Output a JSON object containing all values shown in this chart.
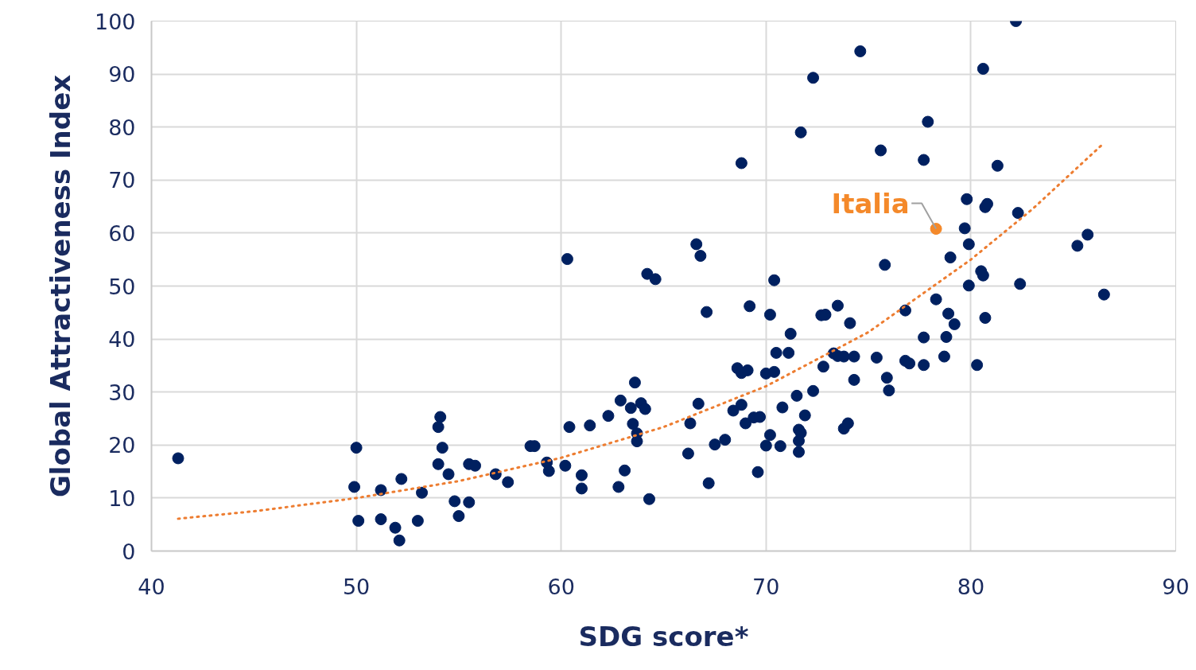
{
  "chart_data": {
    "type": "scatter",
    "xlabel": "SDG score*",
    "ylabel": "Global Attractiveness Index",
    "xlim": [
      40,
      90
    ],
    "xticks": [
      40,
      50,
      60,
      70,
      80,
      90
    ],
    "ylim": [
      0,
      100
    ],
    "yticks": [
      0,
      10,
      20,
      30,
      40,
      50,
      60,
      70,
      80,
      90,
      100
    ],
    "grid": true,
    "marker": "circle",
    "series": [
      {
        "color": "#002060",
        "x": [
          41.3,
          50.0,
          49.9,
          50.1,
          51.2,
          51.2,
          51.9,
          52.1,
          52.2,
          53.0,
          53.2,
          54.1,
          54.0,
          54.2,
          54.0,
          54.5,
          54.8,
          55.0,
          55.5,
          55.8,
          55.5,
          56.8,
          57.4,
          58.5,
          58.7,
          59.3,
          59.4,
          60.2,
          60.3,
          60.4,
          61.0,
          61.0,
          61.4,
          62.3,
          62.8,
          62.9,
          63.1,
          63.6,
          63.4,
          63.5,
          63.7,
          63.7,
          63.9,
          64.1,
          64.3,
          64.2,
          64.6,
          66.2,
          66.3,
          66.6,
          66.7,
          66.8,
          67.1,
          67.2,
          67.5,
          68.0,
          68.4,
          68.6,
          68.8,
          68.8,
          68.8,
          69.0,
          69.1,
          69.2,
          69.4,
          69.7,
          69.6,
          70.0,
          70.0,
          70.2,
          70.2,
          70.4,
          70.4,
          70.5,
          70.7,
          70.8,
          71.1,
          71.2,
          71.5,
          71.6,
          71.6,
          71.6,
          71.7,
          71.9,
          71.7,
          72.3,
          72.3,
          72.8,
          72.7,
          72.9,
          73.3,
          73.5,
          73.5,
          73.8,
          73.8,
          74.0,
          74.1,
          74.3,
          74.3,
          74.6,
          75.4,
          75.6,
          75.8,
          75.9,
          76.0,
          76.8,
          76.8,
          77.0,
          77.7,
          77.7,
          77.7,
          77.9,
          78.3,
          78.7,
          78.9,
          78.8,
          79.0,
          79.2,
          79.7,
          79.8,
          79.9,
          79.9,
          80.3,
          80.5,
          80.6,
          80.6,
          80.7,
          80.7,
          80.8,
          81.3,
          82.2,
          82.3,
          82.4,
          85.2,
          85.7,
          86.5
        ],
        "values": [
          17.5,
          19.5,
          12.1,
          5.7,
          11.5,
          6.0,
          4.4,
          2.0,
          13.6,
          5.7,
          11.0,
          25.3,
          23.4,
          19.5,
          16.4,
          14.5,
          9.4,
          6.6,
          16.4,
          16.1,
          9.2,
          14.5,
          13.0,
          19.8,
          19.8,
          16.7,
          15.1,
          16.1,
          55.1,
          23.4,
          14.3,
          11.8,
          23.7,
          25.5,
          12.1,
          28.4,
          15.2,
          31.8,
          27.0,
          24.0,
          22.2,
          20.7,
          27.9,
          26.8,
          9.8,
          52.3,
          51.3,
          18.4,
          24.1,
          57.9,
          27.8,
          55.7,
          45.1,
          12.8,
          20.1,
          21.0,
          26.5,
          34.5,
          27.6,
          33.6,
          73.2,
          24.1,
          34.1,
          46.2,
          25.2,
          25.3,
          14.9,
          33.5,
          19.9,
          21.9,
          44.6,
          51.1,
          33.8,
          37.4,
          19.8,
          27.1,
          37.4,
          41.0,
          29.3,
          22.9,
          20.8,
          18.7,
          22.3,
          25.6,
          79.0,
          30.2,
          89.3,
          34.8,
          44.5,
          44.6,
          37.3,
          46.3,
          36.8,
          36.7,
          23.1,
          24.1,
          43.0,
          36.7,
          32.3,
          94.3,
          36.5,
          75.6,
          54.0,
          32.7,
          30.3,
          45.4,
          35.9,
          35.4,
          40.3,
          73.8,
          35.1,
          81.0,
          47.5,
          36.7,
          44.8,
          40.4,
          55.4,
          42.8,
          60.9,
          66.4,
          57.9,
          50.1,
          35.1,
          52.8,
          52.0,
          91.0,
          44.0,
          64.9,
          65.5,
          72.7,
          100.0,
          63.8,
          50.4,
          57.6,
          59.7,
          48.4
        ]
      },
      {
        "name": "Italia",
        "color": "#f4892a",
        "x": [
          78.3
        ],
        "values": [
          60.8
        ]
      },
      {
        "type": "line",
        "line_style": "dotted",
        "marker": "none",
        "color": "#ed7d31",
        "x": [
          41.3,
          45,
          50,
          55,
          60,
          65,
          70,
          75,
          80,
          83,
          86.5
        ],
        "values": [
          6.1,
          7.5,
          10.0,
          13.2,
          17.6,
          23.4,
          31.1,
          41.3,
          55.0,
          64.5,
          77.0
        ]
      }
    ]
  }
}
